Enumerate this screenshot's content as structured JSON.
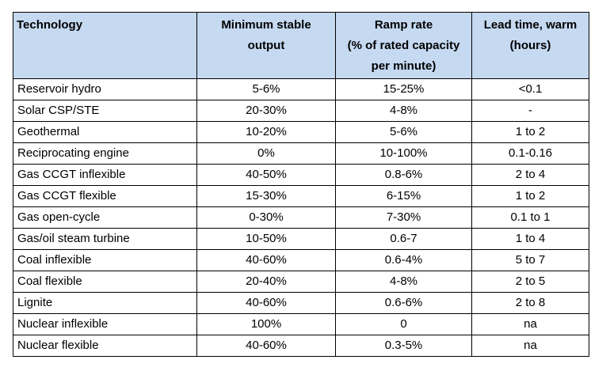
{
  "table": {
    "headers": [
      [
        "Technology"
      ],
      [
        "Minimum stable",
        "output"
      ],
      [
        "Ramp rate",
        "(% of rated capacity",
        "per minute)"
      ],
      [
        "Lead time, warm",
        "(hours)"
      ]
    ],
    "rows": [
      [
        "Reservoir hydro",
        "5-6%",
        "15-25%",
        "<0.1"
      ],
      [
        "Solar CSP/STE",
        "20-30%",
        "4-8%",
        "-"
      ],
      [
        "Geothermal",
        "10-20%",
        "5-6%",
        "1 to 2"
      ],
      [
        "Reciprocating engine",
        "0%",
        "10-100%",
        "0.1-0.16"
      ],
      [
        "Gas CCGT inflexible",
        "40-50%",
        "0.8-6%",
        "2 to 4"
      ],
      [
        "Gas CCGT flexible",
        "15-30%",
        "6-15%",
        "1 to 2"
      ],
      [
        "Gas open-cycle",
        "0-30%",
        "7-30%",
        "0.1 to 1"
      ],
      [
        "Gas/oil steam turbine",
        "10-50%",
        "0.6-7",
        "1 to 4"
      ],
      [
        "Coal inflexible",
        "40-60%",
        "0.6-4%",
        "5 to 7"
      ],
      [
        "Coal flexible",
        "20-40%",
        "4-8%",
        "2 to 5"
      ],
      [
        "Lignite",
        "40-60%",
        "0.6-6%",
        "2 to 8"
      ],
      [
        "Nuclear inflexible",
        "100%",
        "0",
        "na"
      ],
      [
        "Nuclear flexible",
        "40-60%",
        "0.3-5%",
        "na"
      ]
    ]
  },
  "colors": {
    "header_background": "#c5d9f1",
    "border": "#000000"
  }
}
